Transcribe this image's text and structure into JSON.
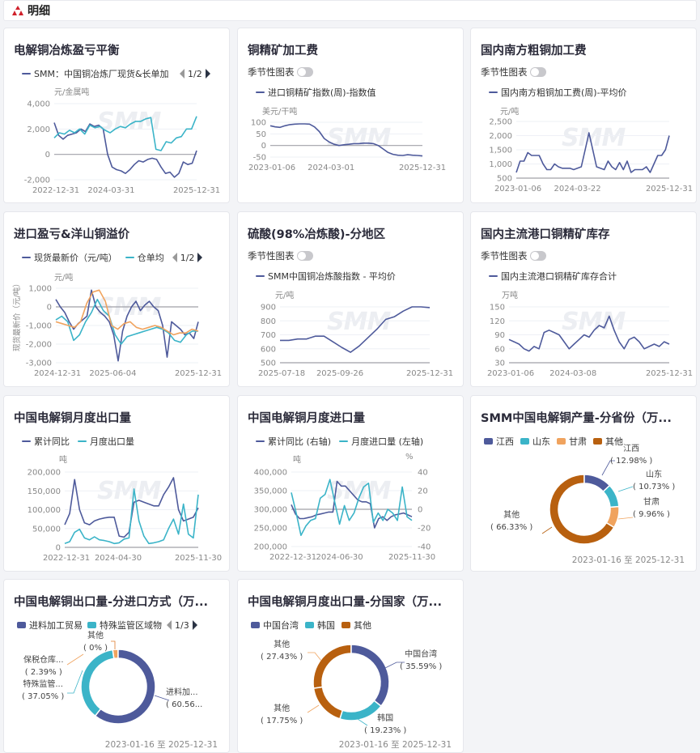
{
  "header": {
    "title": "明细",
    "icon": "smm-logo-icon"
  },
  "watermark": "SMM",
  "colors": {
    "navy": "#4e5a9b",
    "cyan": "#3bb4c8",
    "orange": "#f0a35e",
    "brown": "#b8600f"
  },
  "chart_data": [
    {
      "type": "line",
      "title": "电解铜冶炼盈亏平衡",
      "legend": [
        "SMM：中国铜冶炼厂现货&长单加"
      ],
      "pager": "1/2",
      "unit": "元/金属吨",
      "y_ticks": [
        -2000,
        0,
        2000,
        4000
      ],
      "y_tick_labels": [
        "-2,000",
        "0",
        "2,000",
        "4,000"
      ],
      "baseline": 0,
      "x_labels": [
        "2022-12-31",
        "2024-03-31",
        "2025-12-31"
      ],
      "series": [
        {
          "name": "SMM：中国铜冶炼厂现货&长单加",
          "color": "#4e5a9b",
          "values": [
            2500,
            1500,
            1200,
            1500,
            1600,
            1700,
            2000,
            1800,
            2400,
            2200,
            2300,
            2000,
            0,
            -1000,
            -1200,
            -1300,
            -1500,
            -1200,
            -800,
            -500,
            -600,
            -400,
            -300,
            -400,
            -1000,
            -1500,
            -1400,
            -1800,
            -1500,
            -600,
            -800,
            -700,
            300
          ]
        },
        {
          "name": "series-2",
          "color": "#3bb4c8",
          "values": [
            1300,
            1700,
            1600,
            1900,
            1700,
            2000,
            1600,
            2300,
            2100,
            2200,
            1900,
            1700,
            2000,
            2200,
            2100,
            2400,
            2600,
            2600,
            2800,
            2900,
            400,
            300,
            1000,
            900,
            1300,
            1400,
            2000,
            2000,
            3000
          ]
        }
      ]
    },
    {
      "type": "line",
      "title": "铜精矿加工费",
      "toggle": "季节性图表",
      "legend": [
        "进口铜精矿指数(周)-指数值"
      ],
      "unit": "美元/干吨",
      "y_ticks": [
        -50,
        0,
        50,
        100
      ],
      "y_tick_labels": [
        "-50",
        "0",
        "50",
        "100"
      ],
      "baseline": 0,
      "x_labels": [
        "2023-01-06",
        "2024-03-01",
        "2025-12-31"
      ],
      "series": [
        {
          "name": "进口铜精矿指数(周)-指数值",
          "color": "#4e5a9b",
          "values": [
            85,
            80,
            78,
            85,
            90,
            92,
            93,
            93,
            92,
            80,
            60,
            30,
            15,
            5,
            0,
            3,
            5,
            8,
            8,
            10,
            10,
            8,
            0,
            -15,
            -30,
            -38,
            -42,
            -43,
            -40,
            -42,
            -43,
            -45
          ]
        }
      ]
    },
    {
      "type": "line",
      "title": "国内南方粗铜加工费",
      "toggle": "季节性图表",
      "legend": [
        "国内南方粗铜加工费(周)-平均价"
      ],
      "unit": "元/吨",
      "y_ticks": [
        500,
        1000,
        1500,
        2000,
        2500
      ],
      "y_tick_labels": [
        "500",
        "1,000",
        "1,500",
        "2,000",
        "2,500"
      ],
      "baseline": 500,
      "x_labels": [
        "2023-01-06",
        "2024-03-22",
        "2025-12-31"
      ],
      "series": [
        {
          "name": "国内南方粗铜加工费(周)-平均价",
          "color": "#4e5a9b",
          "values": [
            700,
            1100,
            1100,
            1400,
            1300,
            1300,
            1300,
            1000,
            800,
            800,
            1000,
            900,
            850,
            850,
            850,
            800,
            850,
            900,
            1500,
            2100,
            1500,
            900,
            850,
            800,
            1100,
            900,
            800,
            1050,
            800,
            1100,
            700,
            800,
            800,
            800,
            900,
            700,
            1000,
            1300,
            1300,
            1500,
            2000
          ]
        }
      ]
    },
    {
      "type": "line",
      "title": "进口盈亏&洋山铜溢价",
      "legend": [
        "现货最新价（元/吨）",
        "仓单均"
      ],
      "pager": "1/2",
      "unit": "元/吨",
      "y_axis_label": "现货最新价（元/吨）",
      "y_ticks": [
        -3000,
        -2000,
        -1000,
        0,
        1000
      ],
      "y_tick_labels": [
        "-3,000",
        "-2,000",
        "-1,000",
        "0",
        "1,000"
      ],
      "baseline": 0,
      "x_labels": [
        "2024-12-31",
        "2025-06-04",
        "2025-12-31"
      ],
      "series": [
        {
          "name": "现货最新价（元/吨）",
          "color": "#4e5a9b",
          "values": [
            400,
            0,
            -300,
            -800,
            -1200,
            -900,
            -700,
            -500,
            900,
            0,
            -300,
            -500,
            -800,
            -1500,
            -2900,
            -1300,
            -500,
            0,
            300,
            -200,
            100,
            300,
            0,
            -200,
            -1000,
            -2700,
            -800,
            -1000,
            -1200,
            -1500,
            -1400,
            -1700,
            -800
          ]
        },
        {
          "name": "仓单均",
          "color": "#3bb4c8",
          "values": [
            -700,
            -500,
            -800,
            -1800,
            -1500,
            -800,
            -300,
            400,
            -200,
            -500,
            -1500,
            -2000,
            -1600,
            -1500,
            -1400,
            -1300,
            -1200,
            -1100,
            -1200,
            -1400,
            -1800,
            -1900,
            -1500,
            -1300,
            -1300
          ]
        },
        {
          "name": "series-3",
          "color": "#f0a35e",
          "values": [
            -800,
            -900,
            -1000,
            -1100,
            -800,
            200,
            800,
            900,
            300,
            -1000,
            -1200,
            -900,
            -800,
            -1100,
            -1200,
            -1100,
            -1000,
            -1100,
            -1300,
            -1500,
            -1400,
            -1400,
            -1200,
            -1300
          ]
        }
      ]
    },
    {
      "type": "line",
      "title": "硫酸(98%冶炼酸)-分地区",
      "toggle": "季节性图表",
      "legend": [
        "SMM中国铜冶炼酸指数 - 平均价"
      ],
      "unit": "元/吨",
      "y_ticks": [
        500,
        600,
        700,
        800,
        900
      ],
      "y_tick_labels": [
        "500",
        "600",
        "700",
        "800",
        "900"
      ],
      "baseline": 500,
      "x_labels": [
        "2025-07-18",
        "2025-09-26",
        "2025-12-31"
      ],
      "series": [
        {
          "name": "SMM中国铜冶炼酸指数 - 平均价",
          "color": "#4e5a9b",
          "values": [
            660,
            660,
            670,
            670,
            690,
            690,
            650,
            610,
            575,
            620,
            680,
            740,
            810,
            830,
            870,
            900,
            900,
            895
          ]
        }
      ]
    },
    {
      "type": "line",
      "title": "国内主流港口铜精矿库存",
      "toggle": "季节性图表",
      "legend": [
        "国内主流港口铜精矿库存合计"
      ],
      "unit": "万吨",
      "y_ticks": [
        30,
        60,
        90,
        120,
        150
      ],
      "y_tick_labels": [
        "30",
        "60",
        "90",
        "120",
        "150"
      ],
      "baseline": 30,
      "x_labels": [
        "2023-01-06",
        "2024-03-08",
        "2025-12-31"
      ],
      "series": [
        {
          "name": "国内主流港口铜精矿库存合计",
          "color": "#4e5a9b",
          "values": [
            80,
            75,
            70,
            60,
            55,
            65,
            60,
            95,
            100,
            95,
            90,
            75,
            60,
            70,
            80,
            90,
            85,
            100,
            110,
            105,
            130,
            100,
            75,
            60,
            80,
            85,
            75,
            60,
            65,
            70,
            65,
            75,
            70
          ]
        }
      ]
    },
    {
      "type": "line",
      "title": "中国电解铜月度出口量",
      "legend": [
        "累计同比",
        "月度出口量"
      ],
      "unit": "吨",
      "y_ticks": [
        0,
        50000,
        100000,
        150000,
        200000
      ],
      "y_tick_labels": [
        "0",
        "50,000",
        "100,000",
        "150,000",
        "200,000"
      ],
      "baseline": 0,
      "x_labels": [
        "2022-12-31",
        "2024-04-30",
        "2025-11-30"
      ],
      "series": [
        {
          "name": "累计同比",
          "color": "#4e5a9b",
          "values": [
            60000,
            90000,
            180000,
            100000,
            65000,
            60000,
            70000,
            75000,
            78000,
            80000,
            80000,
            30000,
            27000,
            40000,
            120000,
            125000,
            120000,
            115000,
            110000,
            110000,
            140000,
            160000,
            185000,
            100000,
            70000,
            75000,
            80000,
            105000
          ]
        },
        {
          "name": "月度出口量",
          "color": "#3bb4c8",
          "values": [
            10000,
            15000,
            40000,
            48000,
            25000,
            20000,
            28000,
            20000,
            18000,
            15000,
            10000,
            12000,
            22000,
            25000,
            155000,
            70000,
            30000,
            10000,
            12000,
            15000,
            20000,
            50000,
            75000,
            35000,
            115000,
            35000,
            25000,
            140000
          ]
        }
      ]
    },
    {
      "type": "line",
      "title": "中国电解铜月度进口量",
      "legend": [
        "累计同比 (右轴)",
        "月度进口量 (左轴)"
      ],
      "unit": "吨",
      "unit_right": "%",
      "y_ticks": [
        200000,
        250000,
        300000,
        350000,
        400000
      ],
      "y_tick_labels": [
        "200,000",
        "250,000",
        "300,000",
        "350,000",
        "400,000"
      ],
      "y2_ticks": [
        -40,
        -20,
        0,
        20,
        40
      ],
      "y2_tick_labels": [
        "-40",
        "-20",
        "0",
        "20",
        "40"
      ],
      "baseline": 300000,
      "x_labels": [
        "2022-12-31",
        "2024-06-30",
        "2025-11-30"
      ],
      "series": [
        {
          "name": "累计同比 (右轴)",
          "color": "#4e5a9b",
          "axis": "right",
          "values": [
            5,
            -5,
            -10,
            -10,
            -9,
            -8,
            -6,
            -5,
            -4,
            -3,
            -3,
            30,
            25,
            25,
            20,
            15,
            10,
            8,
            8,
            6,
            -20,
            -10,
            -8,
            -12,
            -8,
            -6,
            -5,
            -4,
            -6,
            -8
          ]
        },
        {
          "name": "月度进口量 (左轴)",
          "color": "#3bb4c8",
          "values": [
            345000,
            290000,
            230000,
            255000,
            270000,
            275000,
            330000,
            340000,
            380000,
            320000,
            260000,
            310000,
            270000,
            290000,
            330000,
            360000,
            370000,
            265000,
            290000,
            270000,
            300000,
            290000,
            270000,
            360000,
            280000,
            270000
          ]
        }
      ]
    },
    {
      "type": "pie",
      "title": "SMM中国电解铜产量-分省份（万...",
      "legend": [
        "江西",
        "山东",
        "甘肃",
        "其他"
      ],
      "date_range": "2023-01-16 至 2025-12-31",
      "slices": [
        {
          "name": "江西",
          "value": 12.98,
          "label": "江西",
          "pct": "( 12.98% )",
          "color": "#4e5a9b"
        },
        {
          "name": "山东",
          "value": 10.73,
          "label": "山东",
          "pct": "( 10.73% )",
          "color": "#3bb4c8"
        },
        {
          "name": "甘肃",
          "value": 9.96,
          "label": "甘肃",
          "pct": "( 9.96% )",
          "color": "#f0a35e"
        },
        {
          "name": "其他",
          "value": 66.33,
          "label": "其他",
          "pct": "( 66.33% )",
          "color": "#b8600f"
        }
      ]
    },
    {
      "type": "pie",
      "title": "中国电解铜出口量-分进口方式（万...",
      "legend": [
        "进料加工贸易",
        "特殊监管区域物"
      ],
      "pager": "1/3",
      "date_range": "2023-01-16 至 2025-12-31",
      "slices": [
        {
          "name": "进料加工贸易",
          "value": 60.56,
          "label": "进料加...",
          "pct": "( 60.56...",
          "color": "#4e5a9b"
        },
        {
          "name": "特殊监管区域物",
          "value": 37.05,
          "label": "特殊监管...",
          "pct": "( 37.05% )",
          "color": "#3bb4c8"
        },
        {
          "name": "保税仓库",
          "value": 2.39,
          "label": "保税仓库...",
          "pct": "( 2.39% )",
          "color": "#f0a35e"
        },
        {
          "name": "其他",
          "value": 0,
          "label": "其他",
          "pct": "( 0% )",
          "color": "#e07b2a"
        }
      ]
    },
    {
      "type": "pie",
      "title": "中国电解铜月度出口量-分国家（万...",
      "legend": [
        "中国台湾",
        "韩国",
        "其他"
      ],
      "date_range": "2023-01-16 至 2025-12-31",
      "slices": [
        {
          "name": "中国台湾",
          "value": 35.59,
          "label": "中国台湾",
          "pct": "( 35.59% )",
          "color": "#4e5a9b"
        },
        {
          "name": "韩国",
          "value": 19.23,
          "label": "韩国",
          "pct": "( 19.23% )",
          "color": "#3bb4c8"
        },
        {
          "name": "其他",
          "value": 17.75,
          "label": "其他",
          "pct": "( 17.75% )",
          "color": "#b8600f"
        },
        {
          "name": "其他",
          "value": 27.43,
          "label": "其他",
          "pct": "( 27.43% )",
          "color": "#b8600f"
        }
      ]
    }
  ]
}
